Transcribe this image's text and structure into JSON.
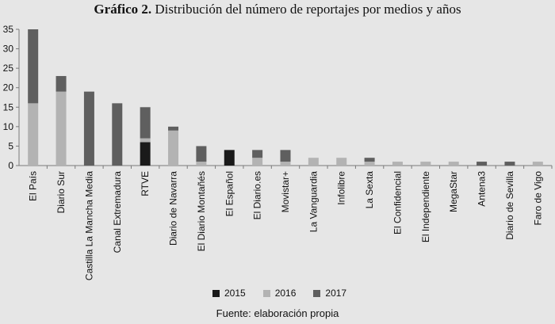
{
  "chart_data": {
    "type": "bar",
    "stacked": true,
    "title_bold": "Gráfico 2.",
    "title_rest": "Distribución del número de reportajes por medios y años",
    "categories": [
      "El País",
      "Diario Sur",
      "Castilla La Mancha Media",
      "Canal Extremadura",
      "RTVE",
      "Diario de Navarra",
      "El Diario Montañés",
      "El Español",
      "El Diario.es",
      "Movistar+",
      "La Vanguardia",
      "Infolibre",
      "La Sexta",
      "El Confidencial",
      "El Independiente",
      "MegaStar",
      "Antena3",
      "Diario de Sevilla",
      "Faro de Vigo"
    ],
    "series": [
      {
        "name": "2015",
        "color": "#1a1a1a",
        "values": [
          0,
          0,
          0,
          0,
          6,
          0,
          0,
          4,
          0,
          0,
          0,
          0,
          0,
          0,
          0,
          0,
          0,
          0,
          0
        ]
      },
      {
        "name": "2016",
        "color": "#b3b3b3",
        "values": [
          16,
          19,
          0,
          0,
          1,
          9,
          1,
          0,
          2,
          1,
          2,
          2,
          1,
          1,
          1,
          1,
          0,
          0,
          1
        ]
      },
      {
        "name": "2017",
        "color": "#5f5f5f",
        "values": [
          19,
          4,
          19,
          16,
          8,
          1,
          4,
          0,
          2,
          3,
          0,
          0,
          1,
          0,
          0,
          0,
          1,
          1,
          0
        ]
      }
    ],
    "ylim": [
      0,
      35
    ],
    "yticks": [
      "0",
      "5",
      "10",
      "15",
      "20",
      "25",
      "30",
      "35"
    ],
    "grid": false,
    "legend_position": "bottom",
    "source": "Fuente: elaboración propia"
  }
}
